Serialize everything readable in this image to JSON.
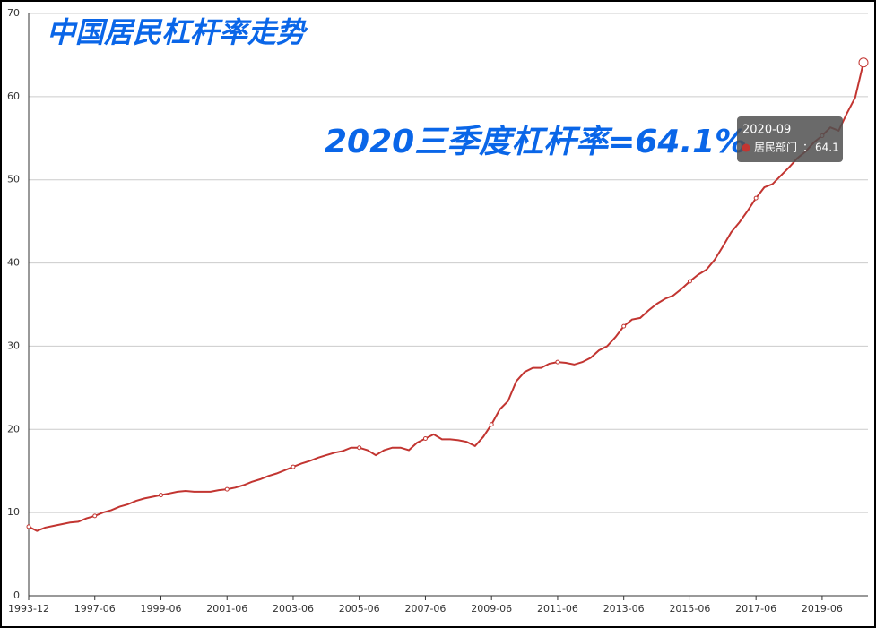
{
  "chart_data": {
    "type": "line",
    "title": "中国居民杠杆率走势",
    "annotation": "2020三季度杠杆率=64.1%",
    "categories": [
      "1993-12",
      null,
      null,
      null,
      null,
      null,
      null,
      null,
      "1997-06",
      null,
      null,
      null,
      null,
      null,
      null,
      null,
      "1999-06",
      null,
      null,
      null,
      null,
      null,
      null,
      null,
      "2001-06",
      null,
      null,
      null,
      null,
      null,
      null,
      null,
      "2003-06",
      null,
      null,
      null,
      null,
      null,
      null,
      null,
      "2005-06",
      null,
      null,
      null,
      null,
      null,
      null,
      null,
      "2007-06",
      null,
      null,
      null,
      null,
      null,
      null,
      null,
      "2009-06",
      null,
      null,
      null,
      null,
      null,
      null,
      null,
      "2011-06",
      null,
      null,
      null,
      null,
      null,
      null,
      null,
      "2013-06",
      null,
      null,
      null,
      null,
      null,
      null,
      null,
      "2015-06",
      null,
      null,
      null,
      null,
      null,
      null,
      null,
      "2017-06",
      null,
      null,
      null,
      null,
      null,
      null,
      null,
      "2019-06",
      null,
      null,
      null,
      null,
      "2020-09"
    ],
    "x_label_interval": 8,
    "series": [
      {
        "name": "居民部门",
        "color": "#c23531",
        "values": [
          8.3,
          7.8,
          8.2,
          8.4,
          8.6,
          8.8,
          8.9,
          9.3,
          9.6,
          10.0,
          10.3,
          10.7,
          11.0,
          11.4,
          11.7,
          11.9,
          12.1,
          12.3,
          12.5,
          12.6,
          12.5,
          12.5,
          12.5,
          12.7,
          12.8,
          13.0,
          13.3,
          13.7,
          14.0,
          14.4,
          14.7,
          15.1,
          15.5,
          15.9,
          16.2,
          16.6,
          16.9,
          17.2,
          17.4,
          17.8,
          17.8,
          17.5,
          16.9,
          17.5,
          17.8,
          17.8,
          17.5,
          18.4,
          18.9,
          19.4,
          18.8,
          18.8,
          18.7,
          18.5,
          18.0,
          19.1,
          20.6,
          22.4,
          23.4,
          25.8,
          26.9,
          27.4,
          27.4,
          27.9,
          28.1,
          28.0,
          27.8,
          28.1,
          28.6,
          29.5,
          30.0,
          31.1,
          32.4,
          33.2,
          33.4,
          34.3,
          35.1,
          35.7,
          36.1,
          36.9,
          37.8,
          38.6,
          39.2,
          40.4,
          42.0,
          43.7,
          44.9,
          46.3,
          47.8,
          49.1,
          49.5,
          50.5,
          51.5,
          52.6,
          53.4,
          54.5,
          55.3,
          56.3,
          55.9,
          58.0,
          59.9,
          64.1
        ]
      }
    ],
    "tooltip_index": 101,
    "ylim": [
      0,
      70
    ],
    "yticks": [
      0,
      10,
      20,
      30,
      40,
      50,
      60,
      70
    ],
    "grid": true
  }
}
